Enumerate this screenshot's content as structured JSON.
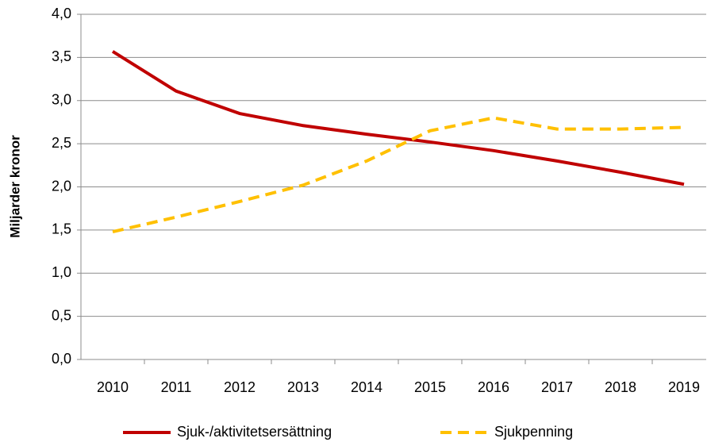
{
  "chart_data": {
    "type": "line",
    "y_label": "Miljarder kronor",
    "categories": [
      "2010",
      "2011",
      "2012",
      "2013",
      "2014",
      "2015",
      "2016",
      "2017",
      "2018",
      "2019"
    ],
    "series": [
      {
        "name": "Sjuk-/aktivitetsersättning",
        "color": "#c00000",
        "dash": false,
        "values": [
          3.57,
          3.11,
          2.85,
          2.71,
          2.61,
          2.52,
          2.42,
          2.3,
          2.17,
          2.03
        ]
      },
      {
        "name": "Sjukpenning",
        "color": "#ffc000",
        "dash": true,
        "values": [
          1.48,
          1.65,
          1.83,
          2.02,
          2.3,
          2.65,
          2.8,
          2.67,
          2.67,
          2.69
        ]
      }
    ],
    "ylim": [
      0,
      4
    ],
    "yticks": [
      {
        "value": 0,
        "label": "0,0"
      },
      {
        "value": 0.5,
        "label": "0,5"
      },
      {
        "value": 1,
        "label": "1,0"
      },
      {
        "value": 1.5,
        "label": "1,5"
      },
      {
        "value": 2,
        "label": "2,0"
      },
      {
        "value": 2.5,
        "label": "2,5"
      },
      {
        "value": 3,
        "label": "3,0"
      },
      {
        "value": 3.5,
        "label": "3,5"
      },
      {
        "value": 4,
        "label": "4,0"
      }
    ],
    "grid": true,
    "legend": "bottom"
  }
}
